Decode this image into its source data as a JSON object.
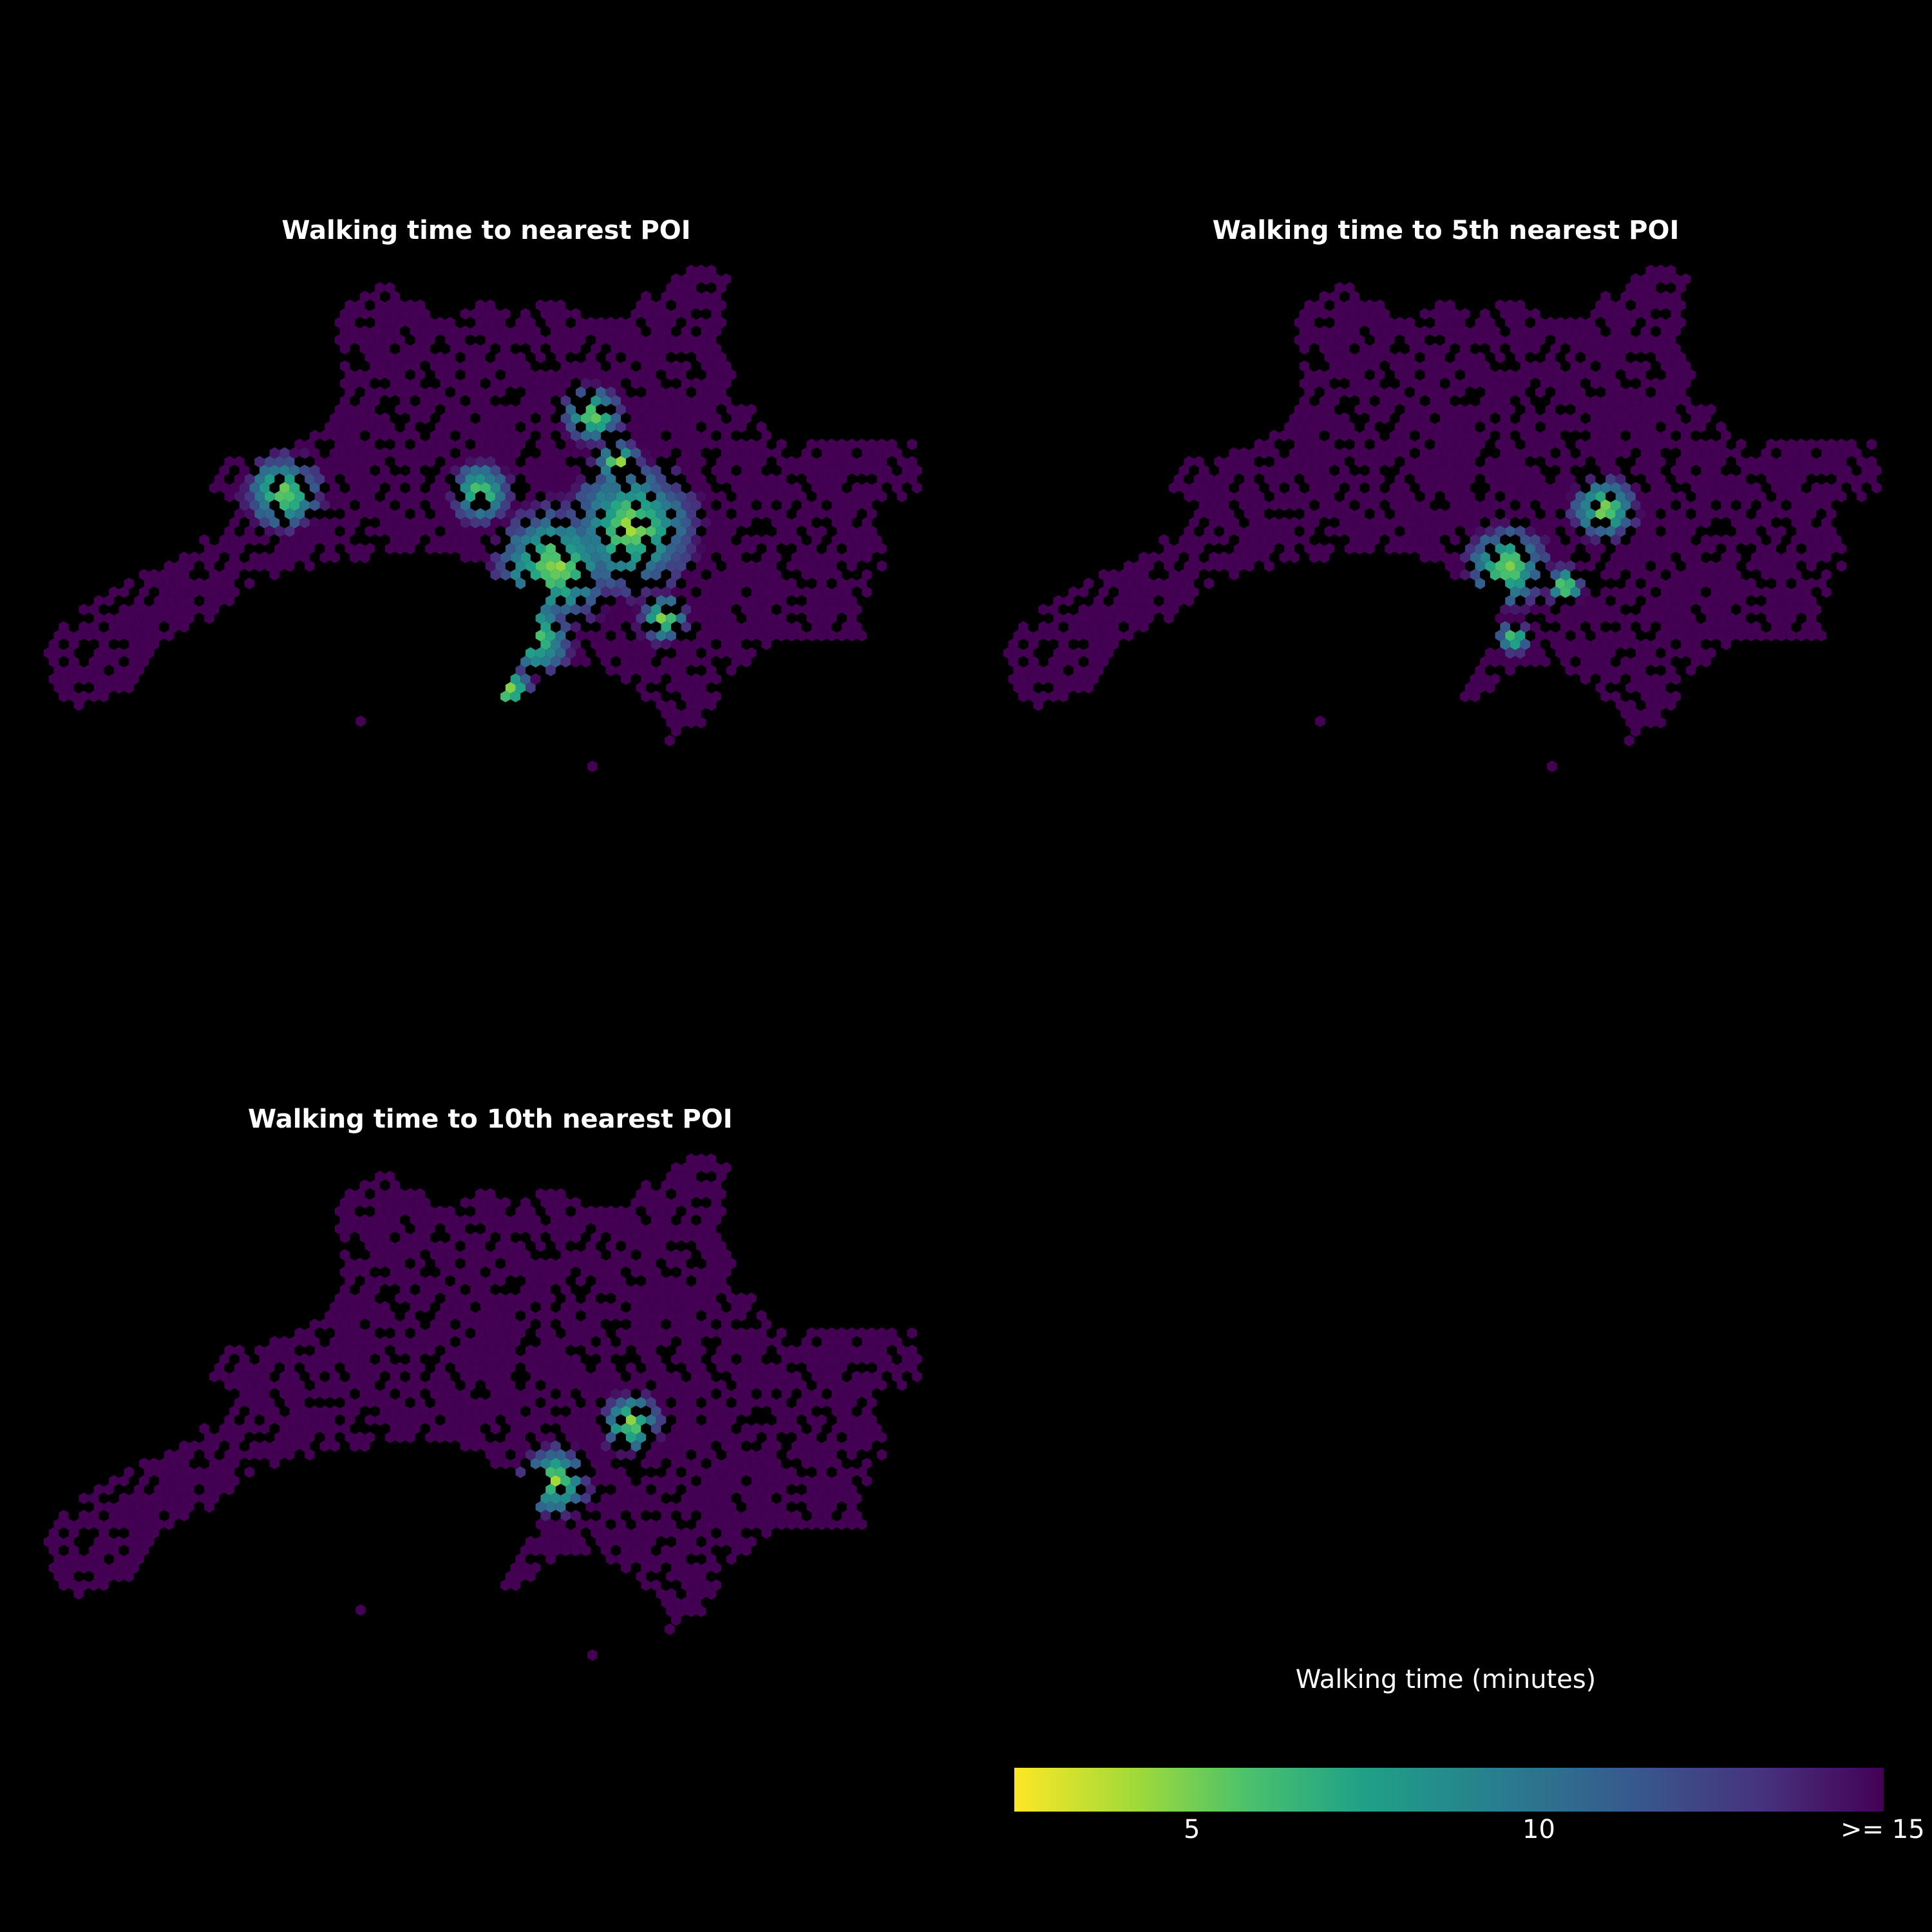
{
  "panels": [
    {
      "title": "Walking time to nearest POI",
      "scenario": "nearest"
    },
    {
      "title": "Walking time to 5th nearest POI",
      "scenario": "fifth"
    },
    {
      "title": "Walking time to 10th nearest POI",
      "scenario": "tenth"
    }
  ],
  "colorbar": {
    "title": "Walking time (minutes)",
    "ticks": [
      "5",
      "10",
      ">= 15"
    ],
    "min_minutes": 2.4,
    "max_minutes": 15,
    "colormap": [
      "#fde725",
      "#a0da39",
      "#4ac16d",
      "#1fa187",
      "#277f8e",
      "#365c8d",
      "#46327e",
      "#440154"
    ]
  },
  "colors": {
    "background": "#000000",
    "base_hex": "#440154"
  }
}
